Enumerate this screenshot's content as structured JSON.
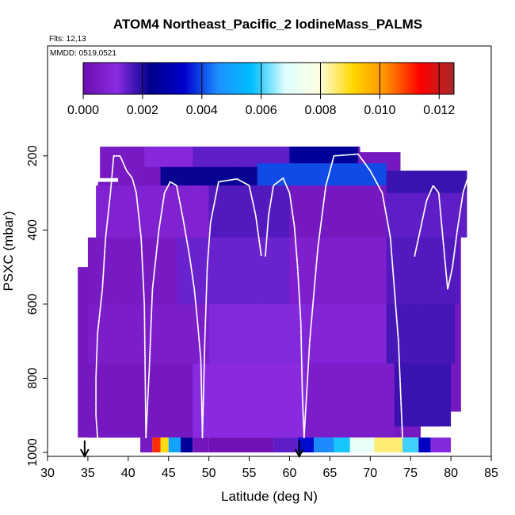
{
  "chart_data": {
    "type": "heatmap",
    "title": "ATOM4 Northeast_Pacific_2 IodineMass_PALMS",
    "flights_label": "Flts: 12,13",
    "dates_label": "MMDD: 0519,0521",
    "xlabel": "Latitude (deg N)",
    "ylabel": "PSXC (mbar)",
    "xlim": [
      30,
      85
    ],
    "ylim": [
      1000,
      100
    ],
    "x_ticks": [
      "30",
      "35",
      "40",
      "45",
      "50",
      "55",
      "60",
      "65",
      "70",
      "75",
      "80",
      "85"
    ],
    "y_ticks": [
      "200",
      "400",
      "600",
      "800",
      "1000"
    ],
    "colorbar": {
      "range": [
        0,
        0.0125
      ],
      "tick_labels": [
        "0.000",
        "0.002",
        "0.004",
        "0.006",
        "0.008",
        "0.010",
        "0.012"
      ],
      "stops": [
        "#6a0dad",
        "#8a2be2",
        "#00008b",
        "#0000cd",
        "#1e90ff",
        "#00bfff",
        "#e0ffff",
        "#ffffe0",
        "#ffd700",
        "#ff8c00",
        "#ff0000",
        "#a52a2a"
      ]
    },
    "markers_latitude": [
      34.6,
      61.2
    ],
    "data_extent": {
      "lat_min": 34.5,
      "lat_max": 82,
      "p_top": 175,
      "p_bottom": 960,
      "bottom_row_range": [
        41.5,
        80
      ],
      "bottom_row_p": [
        960,
        1000
      ]
    },
    "columns": [
      {
        "lat": 35.0,
        "p_top": 500,
        "p_bottom": 960
      },
      {
        "lat": 37.5,
        "p_top": 270,
        "p_bottom": 960
      },
      {
        "lat": 40.0,
        "p_top": 175,
        "p_bottom": 960
      },
      {
        "lat": 42.5,
        "p_top": 175,
        "p_bottom": 960
      },
      {
        "lat": 45.0,
        "p_top": 175,
        "p_bottom": 960
      },
      {
        "lat": 47.5,
        "p_top": 175,
        "p_bottom": 960
      },
      {
        "lat": 50.0,
        "p_top": 175,
        "p_bottom": 960
      },
      {
        "lat": 52.5,
        "p_top": 175,
        "p_bottom": 960
      },
      {
        "lat": 55.0,
        "p_top": 175,
        "p_bottom": 960
      },
      {
        "lat": 57.5,
        "p_top": 175,
        "p_bottom": 960
      },
      {
        "lat": 60.0,
        "p_top": 175,
        "p_bottom": 960
      },
      {
        "lat": 62.5,
        "p_top": 175,
        "p_bottom": 960
      },
      {
        "lat": 65.0,
        "p_top": 175,
        "p_bottom": 960
      },
      {
        "lat": 67.5,
        "p_top": 175,
        "p_bottom": 960
      },
      {
        "lat": 70.0,
        "p_top": 190,
        "p_bottom": 960
      },
      {
        "lat": 72.5,
        "p_top": 190,
        "p_bottom": 960
      },
      {
        "lat": 75.0,
        "p_top": 260,
        "p_bottom": 960
      },
      {
        "lat": 77.5,
        "p_top": 260,
        "p_bottom": 930
      },
      {
        "lat": 80.0,
        "p_top": 260,
        "p_bottom": 890
      }
    ],
    "cells": [
      {
        "lat": [
          36.5,
          42.0
        ],
        "p": [
          175,
          260
        ],
        "value": 0.0005
      },
      {
        "lat": [
          42.0,
          48.0
        ],
        "p": [
          175,
          230
        ],
        "value": 0.001
      },
      {
        "lat": [
          48.0,
          60.0
        ],
        "p": [
          175,
          230
        ],
        "value": 0.0015
      },
      {
        "lat": [
          60.0,
          68.5
        ],
        "p": [
          175,
          220
        ],
        "value": 0.0025
      },
      {
        "lat": [
          44.0,
          56.0
        ],
        "p": [
          230,
          280
        ],
        "value": 0.0022
      },
      {
        "lat": [
          56.0,
          72.0
        ],
        "p": [
          220,
          280
        ],
        "value": 0.004
      },
      {
        "lat": [
          72.0,
          82.0
        ],
        "p": [
          240,
          300
        ],
        "value": 0.0018
      },
      {
        "lat": [
          36.0,
          50.0
        ],
        "p": [
          280,
          420
        ],
        "value": 0.0008
      },
      {
        "lat": [
          50.0,
          60.0
        ],
        "p": [
          280,
          420
        ],
        "value": 0.0016
      },
      {
        "lat": [
          60.0,
          72.0
        ],
        "p": [
          280,
          420
        ],
        "value": 0.0004
      },
      {
        "lat": [
          72.0,
          82.0
        ],
        "p": [
          300,
          420
        ],
        "value": 0.0015
      },
      {
        "lat": [
          35.0,
          46.0
        ],
        "p": [
          420,
          600
        ],
        "value": 0.0005
      },
      {
        "lat": [
          46.0,
          60.0
        ],
        "p": [
          420,
          600
        ],
        "value": 0.0014
      },
      {
        "lat": [
          60.0,
          72.0
        ],
        "p": [
          420,
          600
        ],
        "value": 0.0007
      },
      {
        "lat": [
          72.0,
          81.0
        ],
        "p": [
          420,
          600
        ],
        "value": 0.0016
      },
      {
        "lat": [
          35.0,
          50.0
        ],
        "p": [
          600,
          760
        ],
        "value": 0.0006
      },
      {
        "lat": [
          50.0,
          62.0
        ],
        "p": [
          600,
          760
        ],
        "value": 0.0012
      },
      {
        "lat": [
          62.0,
          72.0
        ],
        "p": [
          600,
          760
        ],
        "value": 0.0009
      },
      {
        "lat": [
          72.0,
          80.5
        ],
        "p": [
          600,
          760
        ],
        "value": 0.0017
      },
      {
        "lat": [
          35.0,
          48.0
        ],
        "p": [
          760,
          960
        ],
        "value": 0.0004
      },
      {
        "lat": [
          48.0,
          62.0
        ],
        "p": [
          760,
          960
        ],
        "value": 0.0011
      },
      {
        "lat": [
          62.0,
          73.0
        ],
        "p": [
          760,
          960
        ],
        "value": 0.0006
      },
      {
        "lat": [
          73.0,
          80.0
        ],
        "p": [
          760,
          930
        ],
        "value": 0.0018
      }
    ],
    "bottom_row": [
      {
        "lat": [
          41.5,
          43.0
        ],
        "value": 0.0005
      },
      {
        "lat": [
          43.0,
          44.0
        ],
        "value": 0.011
      },
      {
        "lat": [
          44.0,
          45.0
        ],
        "value": 0.009
      },
      {
        "lat": [
          45.0,
          46.5
        ],
        "value": 0.005
      },
      {
        "lat": [
          46.5,
          48.0
        ],
        "value": 0.0025
      },
      {
        "lat": [
          48.0,
          50.0
        ],
        "value": 0.0003
      },
      {
        "lat": [
          50.0,
          58.0
        ],
        "value": 0.0002
      },
      {
        "lat": [
          58.0,
          61.0
        ],
        "value": 0.0015
      },
      {
        "lat": [
          61.0,
          63.0
        ],
        "value": 0.0035
      },
      {
        "lat": [
          63.0,
          65.5
        ],
        "value": 0.0045
      },
      {
        "lat": [
          65.5,
          67.5
        ],
        "value": 0.0058
      },
      {
        "lat": [
          67.5,
          70.5
        ],
        "value": 0.0072
      },
      {
        "lat": [
          70.5,
          74.0
        ],
        "value": 0.0085
      },
      {
        "lat": [
          74.0,
          76.0
        ],
        "value": 0.006
      },
      {
        "lat": [
          76.0,
          77.5
        ],
        "value": 0.0032
      },
      {
        "lat": [
          77.5,
          80.0
        ],
        "value": 0.0012
      }
    ],
    "flight_track": [
      [
        [
          36.2,
          960
        ],
        [
          36.0,
          900
        ],
        [
          36.0,
          800
        ],
        [
          36.2,
          680
        ],
        [
          36.8,
          560
        ],
        [
          37.2,
          420
        ],
        [
          37.8,
          300
        ],
        [
          38.2,
          200
        ]
      ],
      [
        [
          38.2,
          200
        ],
        [
          39.0,
          200
        ],
        [
          39.8,
          240
        ],
        [
          40.5,
          260
        ],
        [
          41.0,
          300
        ],
        [
          41.6,
          420
        ],
        [
          42.0,
          600
        ],
        [
          42.2,
          960
        ]
      ],
      [
        [
          42.2,
          960
        ],
        [
          42.6,
          780
        ],
        [
          43.0,
          560
        ],
        [
          43.8,
          400
        ],
        [
          44.5,
          300
        ],
        [
          45.2,
          270
        ],
        [
          46.0,
          280
        ],
        [
          46.8,
          370
        ],
        [
          47.6,
          470
        ],
        [
          48.2,
          560
        ]
      ],
      [
        [
          48.2,
          560
        ],
        [
          48.6,
          650
        ],
        [
          49.0,
          750
        ],
        [
          49.2,
          960
        ]
      ],
      [
        [
          49.2,
          960
        ],
        [
          49.5,
          700
        ],
        [
          49.8,
          500
        ],
        [
          50.2,
          380
        ],
        [
          51.2,
          270
        ],
        [
          53.5,
          262
        ],
        [
          55.0,
          280
        ],
        [
          55.8,
          360
        ],
        [
          56.5,
          470
        ]
      ],
      [
        [
          57.0,
          470
        ],
        [
          57.4,
          360
        ],
        [
          58.0,
          280
        ],
        [
          59.2,
          260
        ],
        [
          60.0,
          300
        ],
        [
          60.6,
          390
        ],
        [
          61.0,
          500
        ]
      ],
      [
        [
          61.0,
          500
        ],
        [
          61.4,
          650
        ],
        [
          61.6,
          850
        ],
        [
          61.8,
          960
        ]
      ],
      [
        [
          61.8,
          960
        ],
        [
          62.5,
          700
        ],
        [
          63.5,
          450
        ],
        [
          64.5,
          280
        ],
        [
          65.5,
          200
        ],
        [
          68.5,
          195
        ],
        [
          70.0,
          240
        ],
        [
          71.5,
          300
        ],
        [
          72.5,
          420
        ],
        [
          73.5,
          700
        ],
        [
          74.0,
          960
        ]
      ],
      [
        [
          75.5,
          470
        ],
        [
          76.2,
          400
        ],
        [
          77.0,
          320
        ],
        [
          77.8,
          280
        ],
        [
          78.5,
          300
        ],
        [
          79.0,
          420
        ],
        [
          79.6,
          560
        ],
        [
          80.2,
          500
        ],
        [
          80.8,
          400
        ],
        [
          81.5,
          300
        ],
        [
          82.0,
          265
        ]
      ]
    ]
  }
}
